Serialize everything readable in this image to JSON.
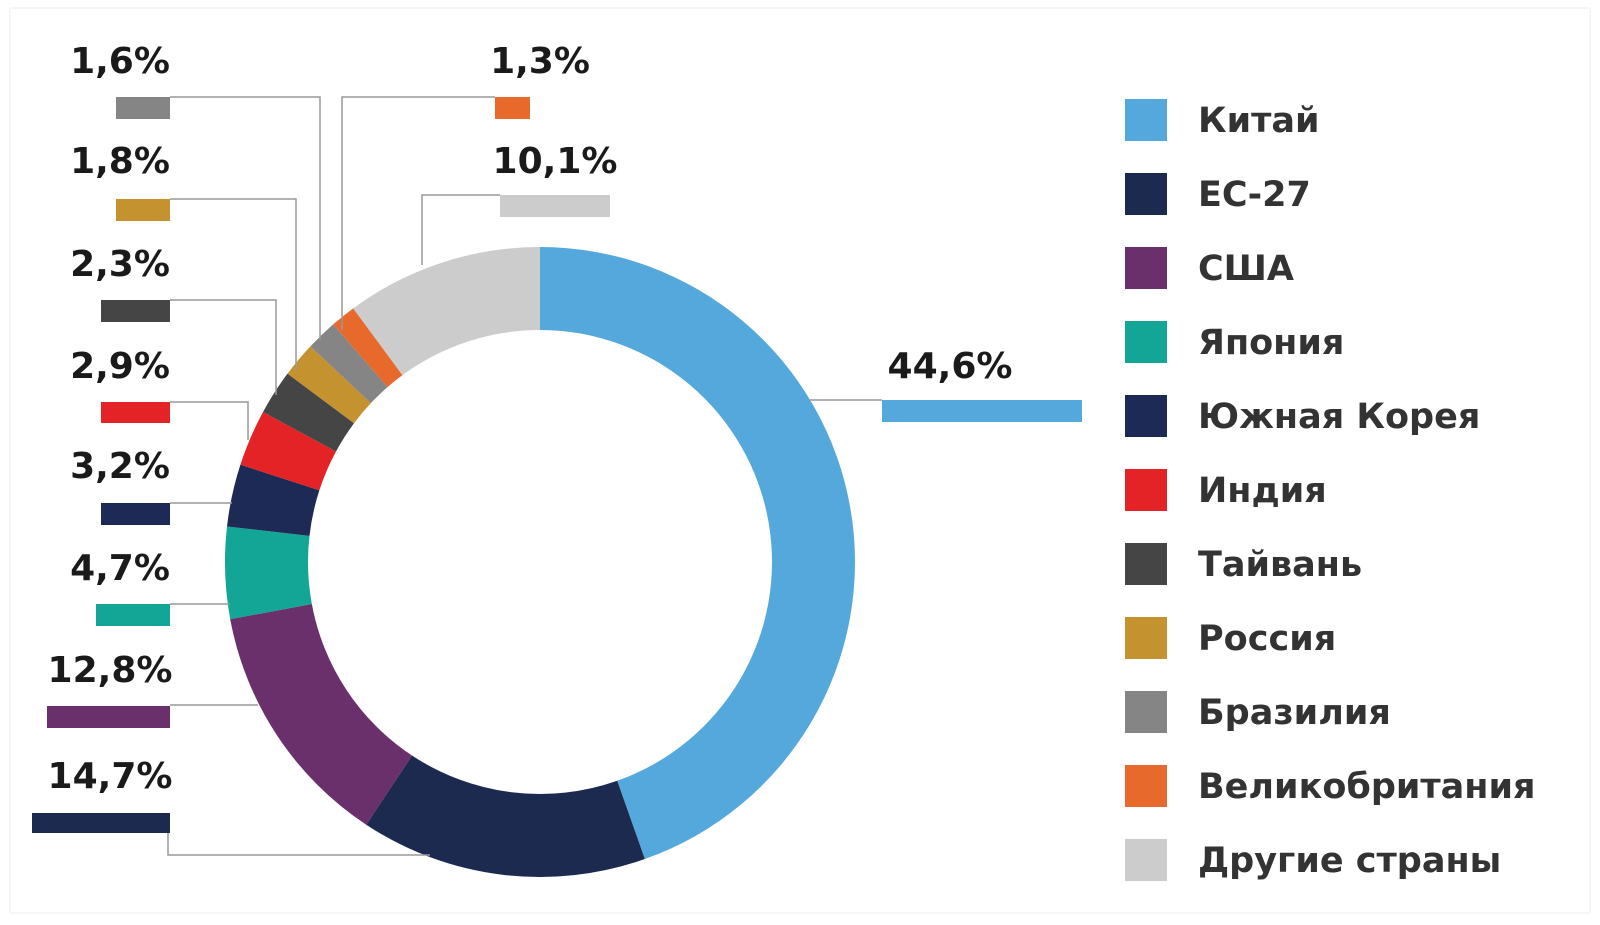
{
  "chart_data": {
    "type": "pie",
    "donut": true,
    "categories": [
      "Китай",
      "ЕС-27",
      "США",
      "Япония",
      "Южная Корея",
      "Индия",
      "Тайвань",
      "Россия",
      "Бразилия",
      "Великобритания",
      "Другие страны"
    ],
    "values": [
      44.6,
      14.7,
      12.8,
      4.7,
      3.2,
      2.9,
      2.3,
      1.8,
      1.6,
      1.3,
      10.1
    ],
    "value_labels": [
      "44,6%",
      "14,7%",
      "12,8%",
      "4,7%",
      "3,2%",
      "2,9%",
      "2,3%",
      "1,8%",
      "1,6%",
      "1,3%",
      "10,1%"
    ],
    "colors": [
      "#55a8dc",
      "#1c2a4f",
      "#69306b",
      "#13a595",
      "#1c2a55",
      "#e32326",
      "#454545",
      "#c59230",
      "#858585",
      "#e8692c",
      "#cccccc"
    ],
    "legend": "right"
  }
}
